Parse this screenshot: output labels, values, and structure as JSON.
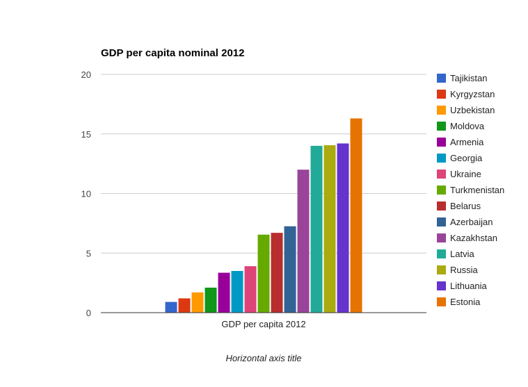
{
  "chart_data": {
    "type": "bar",
    "title": "GDP per capita nominal 2012",
    "categories": [
      "GDP per capita 2012"
    ],
    "xlabel": "Horizontal axis title",
    "ylabel": "",
    "ylim": [
      0,
      20
    ],
    "yticks": [
      0,
      5,
      10,
      15,
      20
    ],
    "grid": true,
    "legend_position": "right",
    "series": [
      {
        "name": "Tajikistan",
        "values": [
          0.9
        ],
        "color": "#3366cc"
      },
      {
        "name": "Kyrgyzstan",
        "values": [
          1.2
        ],
        "color": "#dc3912"
      },
      {
        "name": "Uzbekistan",
        "values": [
          1.7
        ],
        "color": "#ff9900"
      },
      {
        "name": "Moldova",
        "values": [
          2.1
        ],
        "color": "#109618"
      },
      {
        "name": "Armenia",
        "values": [
          3.35
        ],
        "color": "#990099"
      },
      {
        "name": "Georgia",
        "values": [
          3.5
        ],
        "color": "#0099c6"
      },
      {
        "name": "Ukraine",
        "values": [
          3.9
        ],
        "color": "#dd4477"
      },
      {
        "name": "Turkmenistan",
        "values": [
          6.55
        ],
        "color": "#66aa00"
      },
      {
        "name": "Belarus",
        "values": [
          6.7
        ],
        "color": "#b82e2e"
      },
      {
        "name": "Azerbaijan",
        "values": [
          7.25
        ],
        "color": "#316395"
      },
      {
        "name": "Kazakhstan",
        "values": [
          12.0
        ],
        "color": "#994499"
      },
      {
        "name": "Latvia",
        "values": [
          14.0
        ],
        "color": "#22aa99"
      },
      {
        "name": "Russia",
        "values": [
          14.05
        ],
        "color": "#aaaa11"
      },
      {
        "name": "Lithuania",
        "values": [
          14.2
        ],
        "color": "#6633cc"
      },
      {
        "name": "Estonia",
        "values": [
          16.3
        ],
        "color": "#e67300"
      }
    ]
  }
}
